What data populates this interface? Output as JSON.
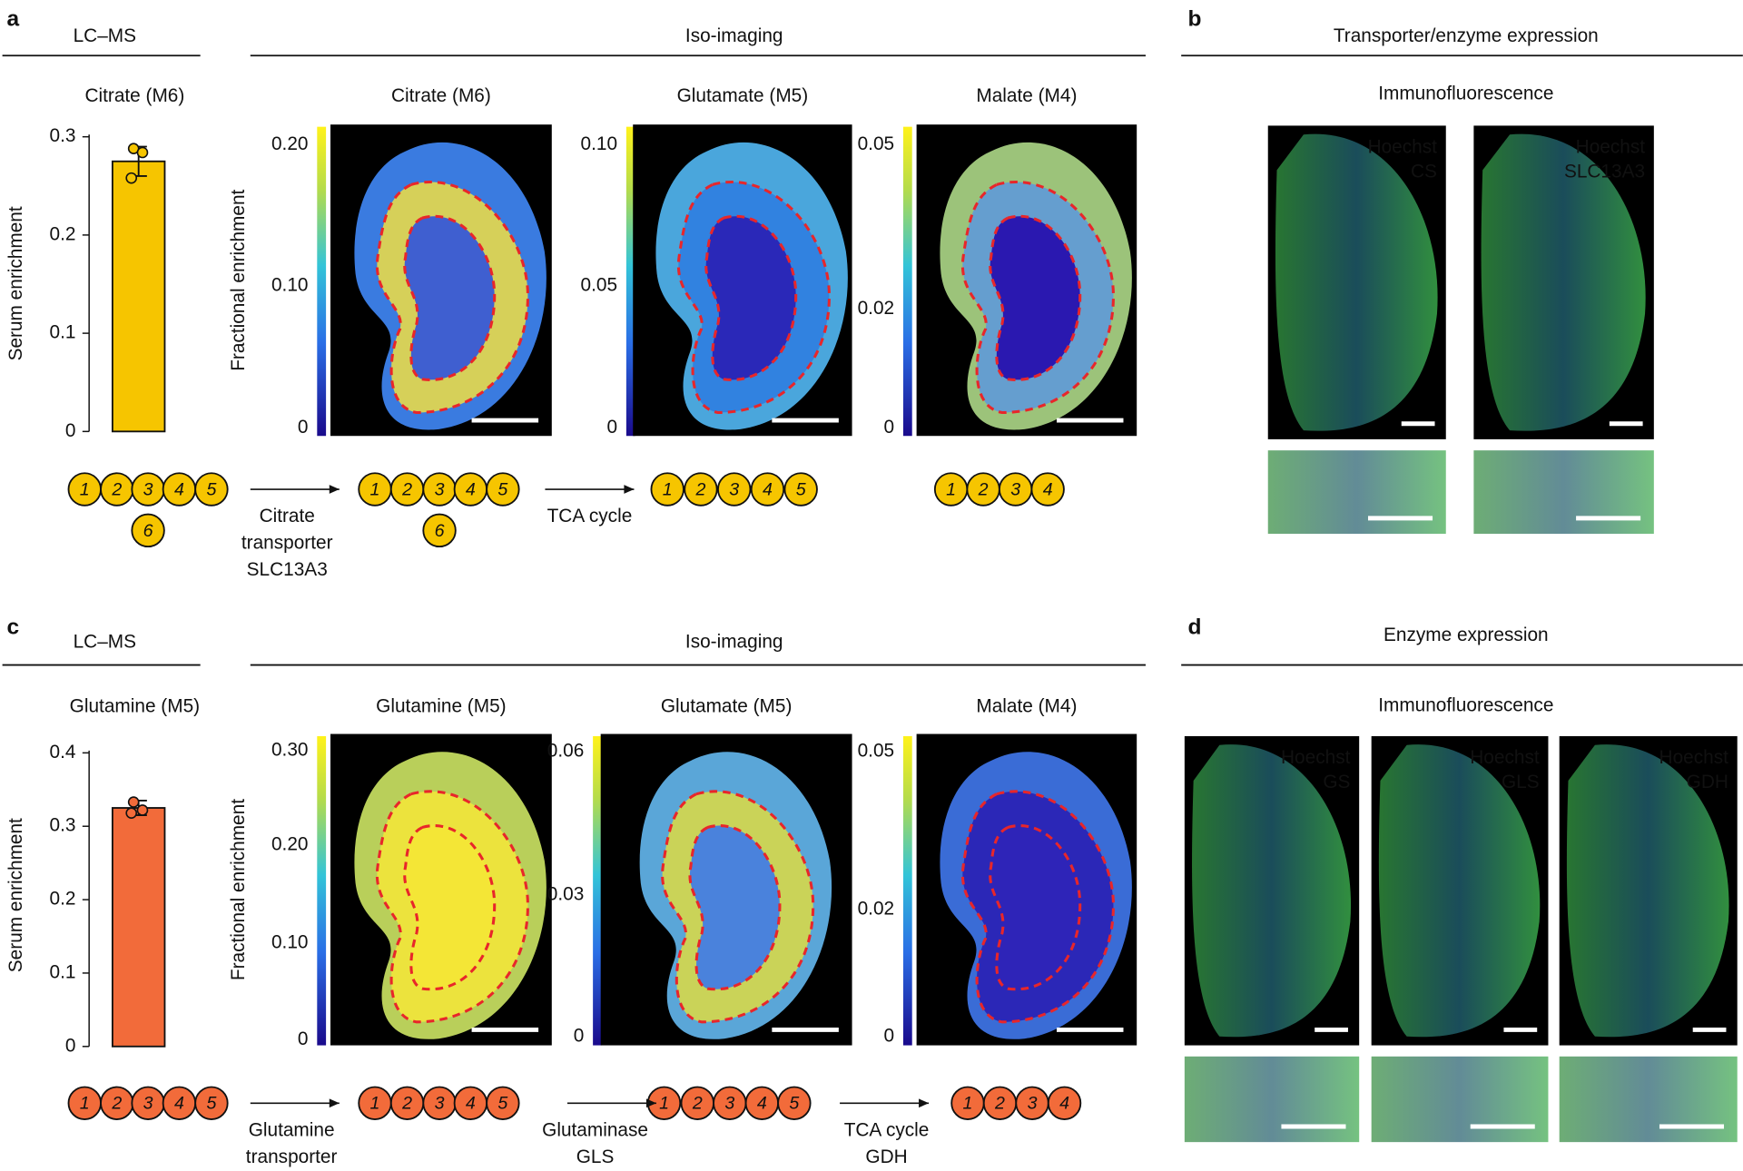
{
  "chart_data": [
    {
      "type": "bar",
      "title": "Citrate (M6)",
      "ylabel": "Serum enrichment",
      "values": [
        0.275
      ],
      "error": [
        0.015
      ],
      "points": [
        0.288,
        0.284,
        0.258
      ],
      "color": "#f6c500",
      "ylim": [
        0,
        0.3
      ],
      "yticks": [
        0,
        0.1,
        0.2,
        0.3
      ]
    },
    {
      "type": "bar",
      "title": "Glutamine (M5)",
      "ylabel": "Serum enrichment",
      "values": [
        0.325
      ],
      "error": [
        0.01
      ],
      "points": [
        0.333,
        0.322,
        0.318
      ],
      "color": "#f26b3a",
      "ylim": [
        0,
        0.4
      ],
      "yticks": [
        0,
        0.1,
        0.2,
        0.3,
        0.4
      ]
    }
  ],
  "panels": [
    {
      "label": "a",
      "left_section": "LC–MS",
      "section": "Iso-imaging",
      "axis_label": "Fractional enrichment",
      "maps": [
        {
          "title": "Citrate (M6)",
          "ticks": [
            "0.20",
            "0.10",
            "0"
          ]
        },
        {
          "title": "Glutamate (M5)",
          "ticks": [
            "0.10",
            "0.05",
            "0"
          ]
        },
        {
          "title": "Malate (M4)",
          "ticks": [
            "0.05",
            "0.02",
            "0"
          ]
        }
      ],
      "molecules": [
        [
          "1",
          "2",
          "3",
          "4",
          "5",
          "6"
        ],
        [
          "1",
          "2",
          "3",
          "4",
          "5",
          "6"
        ],
        [
          "1",
          "2",
          "3",
          "4",
          "5"
        ],
        [
          "1",
          "2",
          "3",
          "4"
        ]
      ],
      "steps": [
        {
          "lines": [
            "Citrate",
            "transporter"
          ],
          "enzyme": "SLC13A3"
        },
        {
          "lines": [
            "TCA cycle"
          ]
        }
      ]
    },
    {
      "label": "b",
      "section": "Transporter/enzyme expression",
      "subtitle": "Immunofluorescence",
      "images": [
        {
          "stains": [
            "Hoechst",
            "CS"
          ]
        },
        {
          "stains": [
            "Hoechst",
            "SLC13A3"
          ]
        }
      ]
    },
    {
      "label": "c",
      "left_section": "LC–MS",
      "section": "Iso-imaging",
      "axis_label": "Fractional enrichment",
      "maps": [
        {
          "title": "Glutamine (M5)",
          "ticks": [
            "0.30",
            "0.20",
            "0.10",
            "0"
          ]
        },
        {
          "title": "Glutamate (M5)",
          "ticks": [
            "0.06",
            "0.03",
            "0"
          ]
        },
        {
          "title": "Malate (M4)",
          "ticks": [
            "0.05",
            "0.02",
            "0"
          ]
        }
      ],
      "molecules": [
        [
          "1",
          "2",
          "3",
          "4",
          "5"
        ],
        [
          "1",
          "2",
          "3",
          "4",
          "5"
        ],
        [
          "1",
          "2",
          "3",
          "4",
          "5"
        ],
        [
          "1",
          "2",
          "3",
          "4"
        ]
      ],
      "steps": [
        {
          "lines": [
            "Glutamine",
            "transporter"
          ]
        },
        {
          "lines": [
            "Glutaminase"
          ],
          "enzyme": "GLS"
        },
        {
          "lines": [
            "TCA cycle"
          ],
          "enzyme": "GDH"
        }
      ]
    },
    {
      "label": "d",
      "section": "Enzyme expression",
      "subtitle": "Immunofluorescence",
      "images": [
        {
          "stains": [
            "Hoechst",
            "GS"
          ]
        },
        {
          "stains": [
            "Hoechst",
            "GLS"
          ]
        },
        {
          "stains": [
            "Hoechst",
            "GDH"
          ]
        }
      ]
    }
  ]
}
